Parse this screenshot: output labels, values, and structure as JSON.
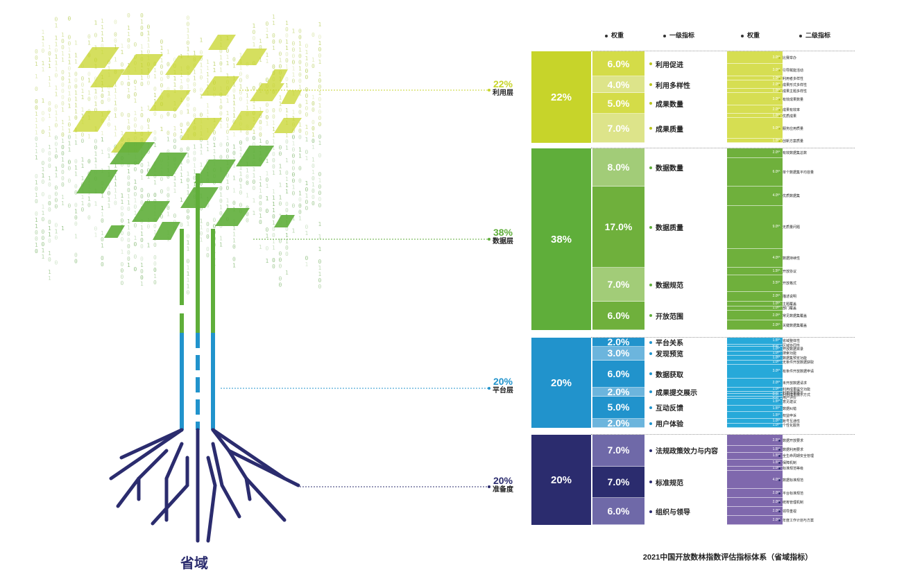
{
  "headers": {
    "weight1": "权重",
    "level1": "一级指标",
    "weight2": "权重",
    "level2": "二级指标"
  },
  "tree_name": "省域",
  "caption": "2021中国开放数林指数评估指标体系（省域指标）",
  "colors": {
    "util": "#c7d42a",
    "data": "#5fae3a",
    "platform": "#2193cc",
    "readiness": "#2b2c6e"
  },
  "levels": [
    {
      "pct": "22%",
      "name": "利用层",
      "color": "#c7d42a",
      "band_label": "22%"
    },
    {
      "pct": "38%",
      "name": "数据层",
      "color": "#5fae3a",
      "band_label": "38%"
    },
    {
      "pct": "20%",
      "name": "平台层",
      "color": "#2193cc",
      "band_label": "20%"
    },
    {
      "pct": "20%",
      "name": "准备度",
      "color": "#2b2c6e",
      "band_label": "20%"
    }
  ],
  "groups": [
    {
      "layer": 0,
      "l1": [
        {
          "w": "6.0%",
          "name": "利用促进",
          "l2": [
            {
              "w": "3.0%",
              "name": "比赛举办"
            },
            {
              "w": "3.0%",
              "name": "引导赋能活动"
            }
          ]
        },
        {
          "w": "4.0%",
          "name": "利用多样性",
          "l2": [
            {
              "w": "1.0%",
              "name": "利用者多样性"
            },
            {
              "w": "2.0%",
              "name": "成果形式多样性"
            },
            {
              "w": "1.0%",
              "name": "成果主题多样性"
            }
          ]
        },
        {
          "w": "5.0%",
          "name": "成果数量",
          "l2": [
            {
              "w": "3.0%",
              "name": "有效成果数量"
            },
            {
              "w": "2.0%",
              "name": "成果有效率"
            }
          ]
        },
        {
          "w": "7.0%",
          "name": "成果质量",
          "l2": [
            {
              "w": "1.0%",
              "name": "优质成果"
            },
            {
              "w": "5.0%",
              "name": "服务应用质量"
            },
            {
              "w": "1.0%",
              "name": "创新方案质量"
            }
          ]
        }
      ]
    },
    {
      "layer": 1,
      "l1": [
        {
          "w": "8.0%",
          "name": "数据数量",
          "l2": [
            {
              "w": "2.0%",
              "name": "有效数据集总数"
            },
            {
              "w": "6.0%",
              "name": "单个数据集平均容量"
            }
          ]
        },
        {
          "w": "17.0%",
          "name": "数据质量",
          "l2": [
            {
              "w": "4.0%",
              "name": "优质数据集"
            },
            {
              "w": "9.0%",
              "name": "无质量问题"
            },
            {
              "w": "4.0%",
              "name": "数据持续性"
            }
          ]
        },
        {
          "w": "7.0%",
          "name": "数据规范",
          "l2": [
            {
              "w": "1.5%",
              "name": "开放协议"
            },
            {
              "w": "3.5%",
              "name": "开放格式"
            },
            {
              "w": "2.0%",
              "name": "描述说明"
            }
          ]
        },
        {
          "w": "6.0%",
          "name": "开放范围",
          "l2": [
            {
              "w": "1.0%",
              "name": "主题覆盖"
            },
            {
              "w": "1.0%",
              "name": "部门覆盖"
            },
            {
              "w": "2.0%",
              "name": "常见数据集覆盖"
            },
            {
              "w": "2.0%",
              "name": "关键数据集覆盖"
            }
          ]
        }
      ]
    },
    {
      "layer": 2,
      "l1": [
        {
          "w": "2.0%",
          "name": "平台关系",
          "l2": [
            {
              "w": "1.5%",
              "name": "省域整体性"
            },
            {
              "w": "0.5%",
              "name": "区域协同性"
            }
          ]
        },
        {
          "w": "3.0%",
          "name": "发现预览",
          "l2": [
            {
              "w": "1.0%",
              "name": "开放数据目录"
            },
            {
              "w": "1.0%",
              "name": "搜索功能"
            },
            {
              "w": "1.0%",
              "name": "数据集预览功能"
            }
          ]
        },
        {
          "w": "6.0%",
          "name": "数据获取",
          "l2": [
            {
              "w": "1.0%",
              "name": "无条件开放数据获取"
            },
            {
              "w": "3.0%",
              "name": "有条件开放数据申请"
            },
            {
              "w": "2.0%",
              "name": "未开放数据请求"
            }
          ]
        },
        {
          "w": "2.0%",
          "name": "成果提交展示",
          "l2": [
            {
              "w": "1.0%",
              "name": "利用成果提交功能"
            },
            {
              "w": "0.5%",
              "name": "利用成果展示"
            },
            {
              "w": "0.5%",
              "name": "利用成果展示方式"
            }
          ]
        },
        {
          "w": "5.0%",
          "name": "互动反馈",
          "l2": [
            {
              "w": "0.5%",
              "name": "用户评价"
            },
            {
              "w": "1.5%",
              "name": "意见建议"
            },
            {
              "w": "1.5%",
              "name": "数据纠错"
            },
            {
              "w": "1.5%",
              "name": "权益申诉"
            }
          ]
        },
        {
          "w": "2.0%",
          "name": "用户体验",
          "l2": [
            {
              "w": "1.0%",
              "name": "账号互通性"
            },
            {
              "w": "1.0%",
              "name": "个性化服务"
            }
          ]
        }
      ]
    },
    {
      "layer": 3,
      "l1": [
        {
          "w": "7.0%",
          "name": "法规政策效力与内容",
          "l2": [
            {
              "w": "2.5%",
              "name": "数据开放要求"
            },
            {
              "w": "1.5%",
              "name": "数据利用要求"
            },
            {
              "w": "1.5%",
              "name": "全生命周期安全管理"
            },
            {
              "w": "1.5%",
              "name": "保障机制"
            }
          ]
        },
        {
          "w": "7.0%",
          "name": "标准规范",
          "l2": [
            {
              "w": "1.0%",
              "name": "标准规范等级"
            },
            {
              "w": "4.0%",
              "name": "数据标准规范"
            },
            {
              "w": "2.0%",
              "name": "平台标准规范"
            }
          ]
        },
        {
          "w": "6.0%",
          "name": "组织与领导",
          "l2": [
            {
              "w": "2.0%",
              "name": "统筹管理机制"
            },
            {
              "w": "2.0%",
              "name": "领导重视"
            },
            {
              "w": "2.0%",
              "name": "年度工作计划与方案"
            }
          ]
        }
      ]
    }
  ]
}
